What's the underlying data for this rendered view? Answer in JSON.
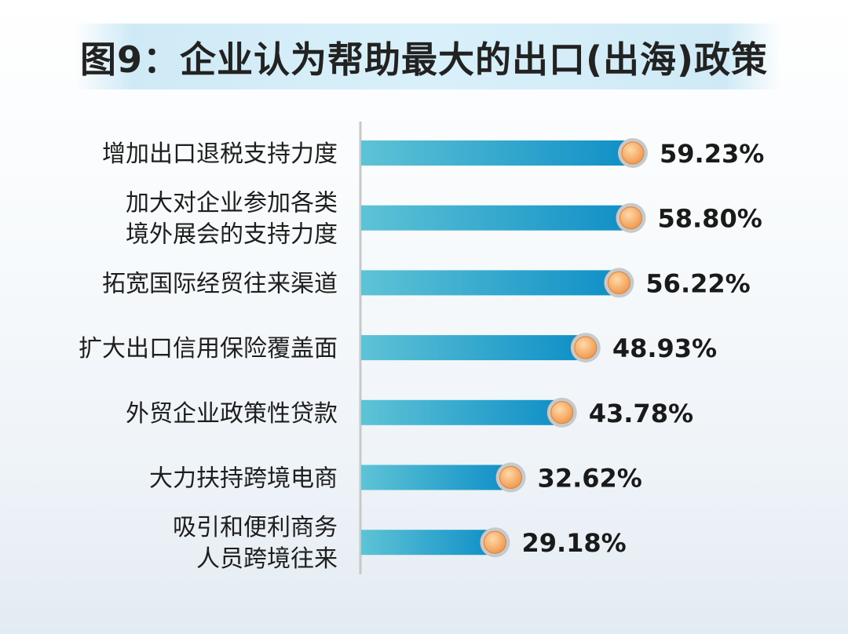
{
  "chart_data": {
    "type": "bar",
    "orientation": "horizontal",
    "title": "图9：企业认为帮助最大的出口(出海)政策",
    "categories": [
      [
        "增加出口退税支持力度"
      ],
      [
        "加大对企业参加各类",
        "境外展会的支持力度"
      ],
      [
        "拓宽国际经贸往来渠道"
      ],
      [
        "扩大出口信用保险覆盖面"
      ],
      [
        "外贸企业政策性贷款"
      ],
      [
        "大力扶持跨境电商"
      ],
      [
        "吸引和便利商务",
        "人员跨境往来"
      ]
    ],
    "values": [
      59.23,
      58.8,
      56.22,
      48.93,
      43.78,
      32.62,
      29.18
    ],
    "value_labels": [
      "59.23%",
      "58.80%",
      "56.22%",
      "48.93%",
      "43.78%",
      "32.62%",
      "29.18%"
    ],
    "colors": {
      "bar_start": "#5ec3d6",
      "bar_end": "#0f8fc6",
      "marker": "#f2a35e",
      "marker_ring": "#c9c9c9"
    }
  }
}
